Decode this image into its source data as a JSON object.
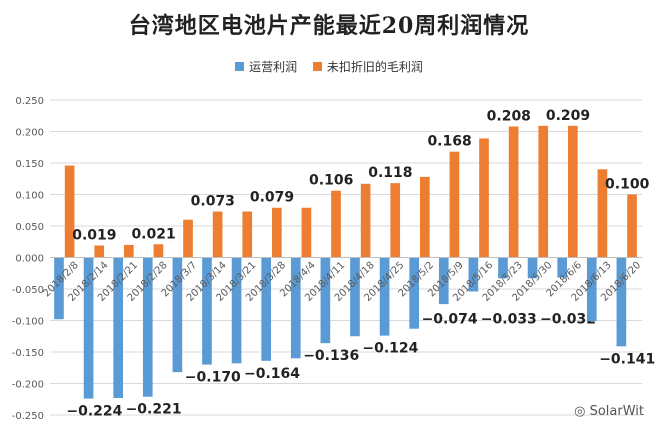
{
  "chart_data": {
    "type": "bar",
    "title": "台湾地区电池片产能最近20周利润情况",
    "categories": [
      "2018/2/8",
      "2018/2/14",
      "2018/2/21",
      "2018/2/28",
      "2018/3/7",
      "2018/3/14",
      "2018/3/21",
      "2018/3/28",
      "2018/4/4",
      "2018/4/11",
      "2018/4/18",
      "2018/4/25",
      "2018/5/2",
      "2018/5/9",
      "2018/5/16",
      "2018/5/23",
      "2018/5/30",
      "2018/6/6",
      "2018/6/13",
      "2018/6/20"
    ],
    "series": [
      {
        "name": "运营利润",
        "color": "#5b9bd5",
        "values": [
          -0.098,
          -0.224,
          -0.223,
          -0.221,
          -0.182,
          -0.17,
          -0.168,
          -0.164,
          -0.16,
          -0.136,
          -0.125,
          -0.124,
          -0.113,
          -0.074,
          -0.054,
          -0.033,
          -0.033,
          -0.032,
          -0.101,
          -0.141
        ],
        "labels": [
          "",
          "-0.224",
          "",
          "-0.221",
          "",
          "-0.170",
          "",
          "-0.164",
          "",
          "-0.136",
          "",
          "-0.124",
          "",
          "-0.074",
          "",
          "-0.033",
          "",
          "-0.032",
          "",
          "-0.141"
        ]
      },
      {
        "name": "未扣折旧的毛利润",
        "color": "#ed7d31",
        "values": [
          0.146,
          0.019,
          0.02,
          0.021,
          0.06,
          0.073,
          0.073,
          0.079,
          0.079,
          0.106,
          0.117,
          0.118,
          0.128,
          0.168,
          0.189,
          0.208,
          0.209,
          0.209,
          0.14,
          0.1
        ],
        "labels": [
          "",
          "0.019",
          "",
          "0.021",
          "",
          "0.073",
          "",
          "0.079",
          "",
          "0.106",
          "",
          "0.118",
          "",
          "0.168",
          "",
          "0.208",
          "",
          "0.209",
          "",
          "0.100"
        ]
      }
    ],
    "ylim": [
      -0.25,
      0.25
    ],
    "yticks": [
      "-0.250",
      "-0.200",
      "-0.150",
      "-0.100",
      "-0.050",
      "0.000",
      "0.050",
      "0.100",
      "0.150",
      "0.200",
      "0.250"
    ],
    "grid": true,
    "legend": "top"
  },
  "watermark": "SolarWit"
}
